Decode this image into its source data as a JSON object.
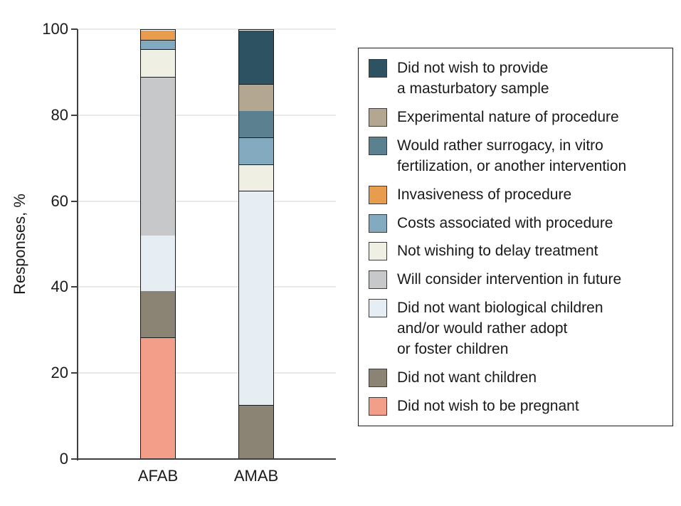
{
  "chart_data": {
    "type": "bar",
    "stacked": true,
    "title": "",
    "xlabel": "",
    "ylabel": "Responses, %",
    "ylim": [
      0,
      100
    ],
    "yticks": [
      0,
      20,
      40,
      60,
      80,
      100
    ],
    "grid": "horizontal",
    "legend_position": "right",
    "categories": [
      "AFAB",
      "AMAB"
    ],
    "stack_note": "series listed top-of-stack first (legend order); bars stack bottom-up from last series; values are percentages per category [AFAB, AMAB]",
    "series": [
      {
        "name": "Did not wish to provide\na masturbatory sample",
        "color": "#2d5261",
        "values": [
          0,
          12.5
        ]
      },
      {
        "name": "Experimental nature of procedure",
        "color": "#b3a791",
        "values": [
          0,
          6.25
        ]
      },
      {
        "name": "Would rather surrogacy, in vitro\nfertilization, or another intervention",
        "color": "#5b8191",
        "values": [
          0,
          6.25
        ]
      },
      {
        "name": "Invasiveness of procedure",
        "color": "#e89c4e",
        "values": [
          2.2,
          0
        ]
      },
      {
        "name": "Costs associated with procedure",
        "color": "#84aabf",
        "values": [
          2.2,
          6.25
        ]
      },
      {
        "name": "Not wishing to delay treatment",
        "color": "#f0efe3",
        "values": [
          6.5,
          6.25
        ]
      },
      {
        "name": "Will consider intervention in future",
        "color": "#c7c8ca",
        "values": [
          37.0,
          0
        ]
      },
      {
        "name": "Did not want biological children\nand/or would rather adopt\nor foster children",
        "color": "#e7eef3",
        "values": [
          13.0,
          50.0
        ]
      },
      {
        "name": "Did not want children",
        "color": "#8b8374",
        "values": [
          10.9,
          12.5
        ]
      },
      {
        "name": "Did not wish to be pregnant",
        "color": "#f29e88",
        "values": [
          28.3,
          0
        ]
      }
    ],
    "colors": {
      "axis": "#3f3f3f",
      "gridline": "#e9e9e9",
      "segment_outline": "#1a1a1a",
      "background": "#ffffff",
      "text": "#1a1a1a"
    }
  }
}
